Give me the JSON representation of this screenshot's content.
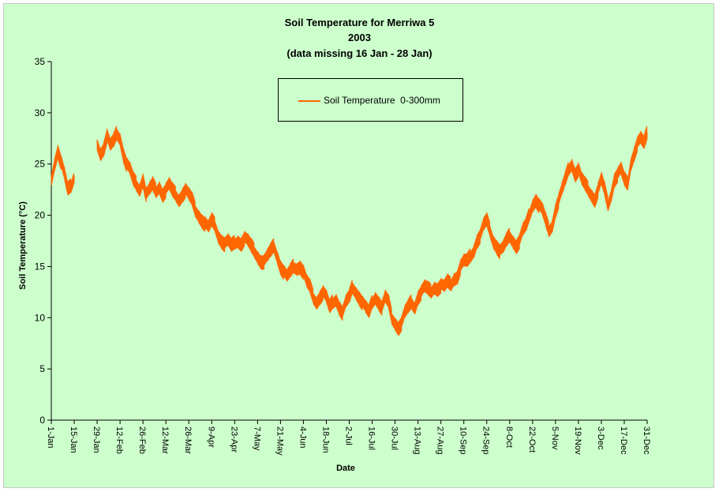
{
  "chart_data": {
    "type": "line",
    "title_lines": [
      "Soil Temperature for Merriwa 5",
      "2003",
      "(data missing 16 Jan - 28 Jan)"
    ],
    "xlabel": "Date",
    "ylabel": "Soil Temperature (°C)",
    "ylim": [
      0,
      35
    ],
    "yticks": [
      0,
      5,
      10,
      15,
      20,
      25,
      30,
      35
    ],
    "xlim": [
      "2003-01-01",
      "2003-12-31"
    ],
    "xticks": [
      {
        "date": "2003-01-01",
        "label": "1-Jan"
      },
      {
        "date": "2003-01-15",
        "label": "15-Jan"
      },
      {
        "date": "2003-01-29",
        "label": "29-Jan"
      },
      {
        "date": "2003-02-12",
        "label": "12-Feb"
      },
      {
        "date": "2003-02-26",
        "label": "26-Feb"
      },
      {
        "date": "2003-03-12",
        "label": "12-Mar"
      },
      {
        "date": "2003-03-26",
        "label": "26-Mar"
      },
      {
        "date": "2003-04-09",
        "label": "9-Apr"
      },
      {
        "date": "2003-04-23",
        "label": "23-Apr"
      },
      {
        "date": "2003-05-07",
        "label": "7-May"
      },
      {
        "date": "2003-05-21",
        "label": "21-May"
      },
      {
        "date": "2003-06-04",
        "label": "4-Jun"
      },
      {
        "date": "2003-06-18",
        "label": "18-Jun"
      },
      {
        "date": "2003-07-02",
        "label": "2-Jul"
      },
      {
        "date": "2003-07-16",
        "label": "16-Jul"
      },
      {
        "date": "2003-07-30",
        "label": "30-Jul"
      },
      {
        "date": "2003-08-13",
        "label": "13-Aug"
      },
      {
        "date": "2003-08-27",
        "label": "27-Aug"
      },
      {
        "date": "2003-09-10",
        "label": "10-Sep"
      },
      {
        "date": "2003-09-24",
        "label": "24-Sep"
      },
      {
        "date": "2003-10-08",
        "label": "8-Oct"
      },
      {
        "date": "2003-10-22",
        "label": "22-Oct"
      },
      {
        "date": "2003-11-05",
        "label": "5-Nov"
      },
      {
        "date": "2003-11-19",
        "label": "19-Nov"
      },
      {
        "date": "2003-12-03",
        "label": "3-Dec"
      },
      {
        "date": "2003-12-17",
        "label": "17-Dec"
      },
      {
        "date": "2003-12-31",
        "label": "31-Dec"
      }
    ],
    "grid": false,
    "legend_position": "top-center",
    "series": [
      {
        "name": "Soil Temperature  0-300mm",
        "color": "#ff6600",
        "segments": [
          {
            "x": [
              "2003-01-01",
              "2003-01-03",
              "2003-01-05",
              "2003-01-07",
              "2003-01-09",
              "2003-01-11",
              "2003-01-13",
              "2003-01-15"
            ],
            "y": [
              23.5,
              25.0,
              26.3,
              25.2,
              24.0,
              22.5,
              22.8,
              23.8
            ]
          },
          {
            "x": [
              "2003-01-29",
              "2003-01-31",
              "2003-02-02",
              "2003-02-04",
              "2003-02-06",
              "2003-02-08",
              "2003-02-10",
              "2003-02-12",
              "2003-02-14",
              "2003-02-16",
              "2003-02-18",
              "2003-02-20",
              "2003-02-22",
              "2003-02-24",
              "2003-02-26",
              "2003-02-28",
              "2003-03-02",
              "2003-03-04",
              "2003-03-06",
              "2003-03-08",
              "2003-03-10",
              "2003-03-12",
              "2003-03-14",
              "2003-03-16",
              "2003-03-18",
              "2003-03-20",
              "2003-03-22",
              "2003-03-24",
              "2003-03-26",
              "2003-03-28",
              "2003-03-30",
              "2003-04-01",
              "2003-04-03",
              "2003-04-05",
              "2003-04-07",
              "2003-04-09",
              "2003-04-11",
              "2003-04-13",
              "2003-04-15",
              "2003-04-17",
              "2003-04-19",
              "2003-04-21",
              "2003-04-23",
              "2003-04-25",
              "2003-04-27",
              "2003-04-29",
              "2003-05-01",
              "2003-05-03",
              "2003-05-05",
              "2003-05-07",
              "2003-05-09",
              "2003-05-11",
              "2003-05-13",
              "2003-05-15",
              "2003-05-17",
              "2003-05-19",
              "2003-05-21",
              "2003-05-23",
              "2003-05-25",
              "2003-05-27",
              "2003-05-29",
              "2003-05-31",
              "2003-06-02",
              "2003-06-04",
              "2003-06-06",
              "2003-06-08",
              "2003-06-10",
              "2003-06-12",
              "2003-06-14",
              "2003-06-16",
              "2003-06-18",
              "2003-06-20",
              "2003-06-22",
              "2003-06-24",
              "2003-06-26",
              "2003-06-28",
              "2003-06-30",
              "2003-07-02",
              "2003-07-04",
              "2003-07-06",
              "2003-07-08",
              "2003-07-10",
              "2003-07-12",
              "2003-07-14",
              "2003-07-16",
              "2003-07-18",
              "2003-07-20",
              "2003-07-22",
              "2003-07-24",
              "2003-07-26",
              "2003-07-28",
              "2003-07-30",
              "2003-08-01",
              "2003-08-03",
              "2003-08-05",
              "2003-08-07",
              "2003-08-09",
              "2003-08-11",
              "2003-08-13",
              "2003-08-15",
              "2003-08-17",
              "2003-08-19",
              "2003-08-21",
              "2003-08-23",
              "2003-08-25",
              "2003-08-27",
              "2003-08-29",
              "2003-08-31",
              "2003-09-02",
              "2003-09-04",
              "2003-09-06",
              "2003-09-08",
              "2003-09-10",
              "2003-09-12",
              "2003-09-14",
              "2003-09-16",
              "2003-09-18",
              "2003-09-20",
              "2003-09-22",
              "2003-09-24",
              "2003-09-26",
              "2003-09-28",
              "2003-09-30",
              "2003-10-02",
              "2003-10-04",
              "2003-10-06",
              "2003-10-08",
              "2003-10-10",
              "2003-10-12",
              "2003-10-14",
              "2003-10-16",
              "2003-10-18",
              "2003-10-20",
              "2003-10-22",
              "2003-10-24",
              "2003-10-26",
              "2003-10-28",
              "2003-10-30",
              "2003-11-01",
              "2003-11-03",
              "2003-11-05",
              "2003-11-07",
              "2003-11-09",
              "2003-11-11",
              "2003-11-13",
              "2003-11-15",
              "2003-11-17",
              "2003-11-19",
              "2003-11-21",
              "2003-11-23",
              "2003-11-25",
              "2003-11-27",
              "2003-11-29",
              "2003-12-01",
              "2003-12-03",
              "2003-12-05",
              "2003-12-07",
              "2003-12-09",
              "2003-12-11",
              "2003-12-13",
              "2003-12-15",
              "2003-12-17",
              "2003-12-19",
              "2003-12-21",
              "2003-12-23",
              "2003-12-25",
              "2003-12-27",
              "2003-12-29",
              "2003-12-31"
            ],
            "y": [
              27.0,
              26.0,
              26.5,
              27.8,
              26.8,
              27.2,
              28.0,
              27.5,
              26.0,
              25.0,
              24.5,
              23.5,
              23.0,
              22.5,
              23.5,
              22.0,
              22.5,
              23.0,
              22.3,
              22.8,
              22.0,
              22.5,
              23.0,
              22.4,
              22.0,
              21.5,
              22.0,
              22.5,
              22.0,
              21.5,
              20.5,
              20.0,
              19.5,
              19.2,
              18.8,
              19.5,
              19.0,
              18.0,
              17.5,
              17.2,
              17.5,
              17.0,
              17.3,
              17.5,
              17.2,
              17.8,
              17.5,
              17.0,
              16.5,
              16.0,
              15.5,
              15.5,
              16.0,
              16.5,
              17.0,
              16.0,
              15.0,
              14.5,
              14.0,
              14.5,
              15.0,
              14.8,
              15.0,
              14.5,
              13.5,
              13.0,
              12.0,
              11.5,
              12.0,
              12.5,
              12.0,
              11.0,
              11.5,
              11.8,
              11.0,
              10.5,
              11.5,
              12.0,
              13.0,
              12.5,
              12.0,
              11.5,
              11.0,
              10.5,
              11.5,
              12.0,
              11.5,
              11.0,
              12.0,
              11.5,
              10.0,
              9.5,
              9.0,
              9.5,
              10.5,
              11.0,
              11.5,
              11.0,
              12.0,
              12.5,
              13.0,
              12.8,
              12.5,
              13.0,
              12.8,
              13.2,
              13.0,
              13.5,
              13.2,
              13.8,
              14.0,
              15.0,
              15.5,
              15.5,
              16.0,
              16.5,
              17.5,
              18.0,
              19.0,
              19.5,
              18.5,
              17.5,
              17.0,
              16.5,
              16.8,
              17.5,
              18.0,
              17.5,
              17.0,
              17.5,
              18.5,
              19.0,
              20.0,
              21.0,
              21.5,
              21.0,
              20.5,
              19.5,
              18.5,
              19.0,
              20.5,
              21.5,
              22.5,
              23.5,
              24.5,
              25.0,
              24.0,
              24.5,
              23.5,
              23.0,
              22.5,
              22.0,
              21.5,
              22.5,
              23.5,
              22.5,
              21.0,
              22.0,
              23.5,
              24.0,
              24.5,
              23.5,
              23.0,
              25.0,
              26.0,
              27.0,
              27.5,
              27.0,
              28.0
            ]
          }
        ]
      }
    ]
  }
}
